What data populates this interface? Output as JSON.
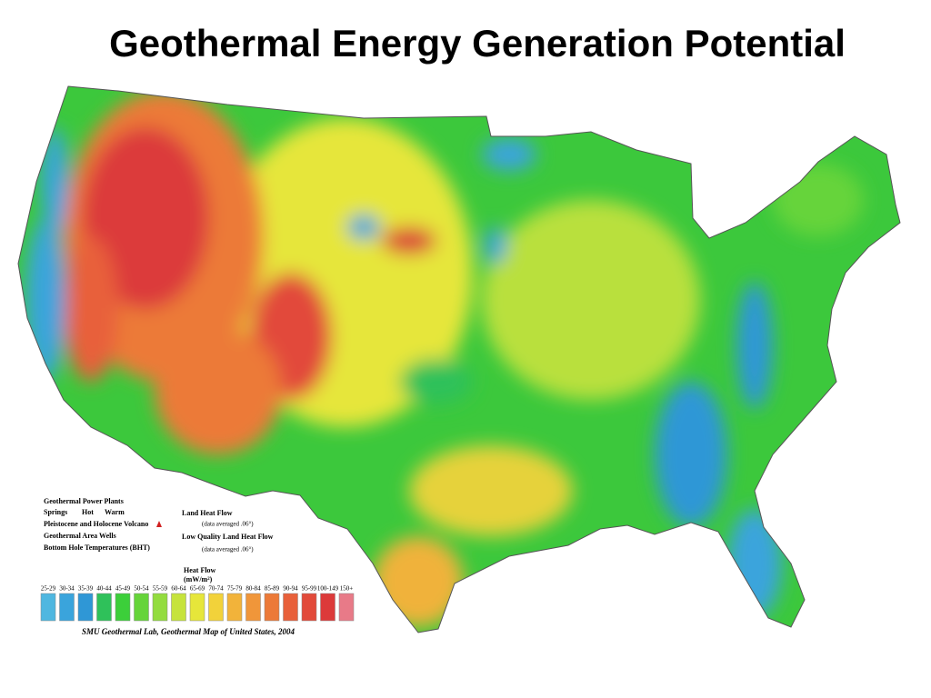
{
  "header": {
    "title": "Geothermal Energy Generation Potential"
  },
  "legend": {
    "items": [
      "Geothermal Power Plants",
      "Springs",
      "Hot",
      "Warm",
      "Pleistocene and Holocene Volcano",
      "Geothermal Area Wells",
      "Bottom Hole Temperatures (BHT)"
    ],
    "land_heat_flow": "Land Heat Flow",
    "land_heat_flow_note": "(data averaged .06°)",
    "low_quality": "Low Quality Land Heat Flow",
    "low_quality_note": "(data averaged .06°)",
    "scale_title": "Heat Flow",
    "scale_unit": "(mW/m²)",
    "scale": [
      {
        "label": "25-29",
        "color": "#4fb7e0"
      },
      {
        "label": "30-34",
        "color": "#3aa4dc"
      },
      {
        "label": "35-39",
        "color": "#2f97d6"
      },
      {
        "label": "40-44",
        "color": "#2fc15a"
      },
      {
        "label": "45-49",
        "color": "#3ccf3a"
      },
      {
        "label": "50-54",
        "color": "#66d43a"
      },
      {
        "label": "55-59",
        "color": "#93dc3e"
      },
      {
        "label": "60-64",
        "color": "#c6e33c"
      },
      {
        "label": "65-69",
        "color": "#e6e63a"
      },
      {
        "label": "70-74",
        "color": "#f2d23a"
      },
      {
        "label": "75-79",
        "color": "#f2b33a"
      },
      {
        "label": "80-84",
        "color": "#f0963a"
      },
      {
        "label": "85-89",
        "color": "#ec7a38"
      },
      {
        "label": "90-94",
        "color": "#e8603a"
      },
      {
        "label": "95-99",
        "color": "#e24a3a"
      },
      {
        "label": "100-149",
        "color": "#dc3a3a"
      },
      {
        "label": "150+",
        "color": "#e87a88"
      }
    ],
    "credit": "SMU Geothermal Lab, Geothermal Map of United States, 2004"
  }
}
